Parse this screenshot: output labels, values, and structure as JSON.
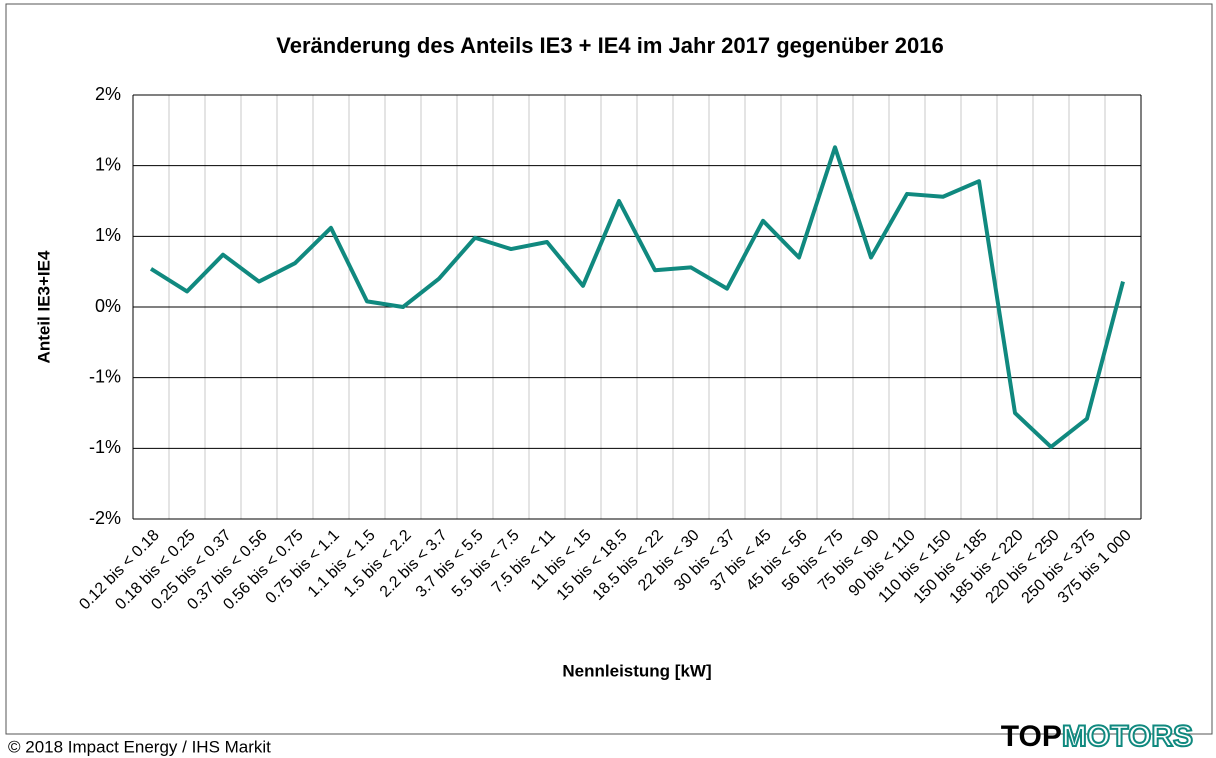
{
  "chart_data": {
    "type": "line",
    "title": "Veränderung des Anteils IE3 + IE4 im Jahr 2017 gegenüber 2016",
    "x_label": "Nennleistung [kW]",
    "y_label": "Anteil IE3+IE4",
    "categories": [
      "0.12 bis < 0.18",
      "0.18 bis < 0.25",
      "0.25 bis < 0.37",
      "0.37 bis < 0.56",
      "0.56 bis < 0.75",
      "0.75 bis < 1.1",
      "1.1 bis < 1.5",
      "1.5 bis < 2.2",
      "2.2 bis < 3.7",
      "3.7 bis < 5.5",
      "5.5 bis < 7.5",
      "7.5 bis < 11",
      "11 bis < 15",
      "15 bis < 18.5",
      "18.5 bis < 22",
      "22 bis < 30",
      "30 bis < 37",
      "37 bis < 45",
      "45 bis < 56",
      "56 bis < 75",
      "75 bis < 90",
      "90 bis < 110",
      "110 bis < 150",
      "150 bis < 185",
      "185 bis < 220",
      "220 bis < 250",
      "250 bis < 375",
      "375 bis 1 000"
    ],
    "series": [
      {
        "name": "Anteil IE3+IE4",
        "color": "#10897f",
        "values": [
          0.27,
          0.11,
          0.37,
          0.18,
          0.31,
          0.56,
          0.04,
          0.0,
          0.2,
          0.49,
          0.41,
          0.46,
          0.15,
          0.75,
          0.26,
          0.28,
          0.13,
          0.61,
          0.35,
          1.13,
          0.35,
          0.8,
          0.78,
          0.89,
          -0.75,
          -0.99,
          -0.79,
          0.18
        ]
      }
    ],
    "ylim": [
      -1.5,
      1.5
    ],
    "yticks": [
      {
        "value": -1.5,
        "label": "-2%"
      },
      {
        "value": -1.0,
        "label": "-1%"
      },
      {
        "value": -0.5,
        "label": "-1%"
      },
      {
        "value": 0,
        "label": "0%"
      },
      {
        "value": 0.5,
        "label": "1%"
      },
      {
        "value": 1.0,
        "label": "1%"
      },
      {
        "value": 1.5,
        "label": "2%"
      }
    ],
    "grid": true,
    "footer": "© 2018 Impact Energy / IHS Markit",
    "logo": [
      "TOP",
      "MOTORS"
    ]
  }
}
